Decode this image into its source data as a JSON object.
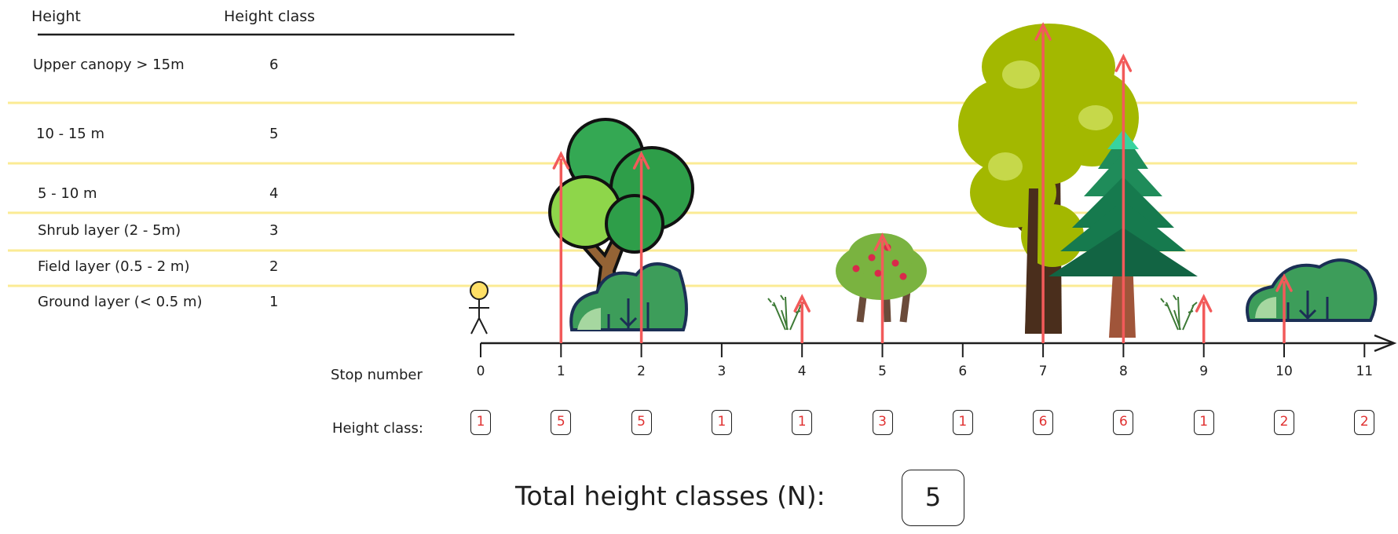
{
  "legend": {
    "col_height_label": "Height",
    "col_class_label": "Height class",
    "rows": [
      {
        "label": "Upper canopy > 15m",
        "cls": "6"
      },
      {
        "label": "10 - 15 m",
        "cls": "5"
      },
      {
        "label": "5 - 10 m",
        "cls": "4"
      },
      {
        "label": "Shrub layer (2 - 5m)",
        "cls": "3"
      },
      {
        "label": "Field layer (0.5 - 2 m)",
        "cls": "2"
      },
      {
        "label": "Ground layer (< 0.5 m)",
        "cls": "1"
      }
    ]
  },
  "row_labels": {
    "stop_number": "Stop number",
    "height_class": "Height class:"
  },
  "stops": [
    {
      "number": "0",
      "height_class": "1",
      "object": "person-icon"
    },
    {
      "number": "1",
      "height_class": "5",
      "object": "deciduous-tree-icon"
    },
    {
      "number": "2",
      "height_class": "5",
      "object": "bush-icon"
    },
    {
      "number": "3",
      "height_class": "1",
      "object": ""
    },
    {
      "number": "4",
      "height_class": "1",
      "object": "herb-icon"
    },
    {
      "number": "5",
      "height_class": "3",
      "object": "berry-shrub-icon"
    },
    {
      "number": "6",
      "height_class": "1",
      "object": ""
    },
    {
      "number": "7",
      "height_class": "6",
      "object": "tall-tree-icon"
    },
    {
      "number": "8",
      "height_class": "6",
      "object": "conifer-tree-icon"
    },
    {
      "number": "9",
      "height_class": "1",
      "object": "herb-icon"
    },
    {
      "number": "10",
      "height_class": "2",
      "object": "bush-icon"
    },
    {
      "number": "11",
      "height_class": "2",
      "object": ""
    }
  ],
  "total": {
    "label": "Total height classes (N):",
    "value": "5"
  },
  "colors": {
    "arrow": "#f25a5a",
    "band_line": "#fbeb94",
    "stroke": "#1e1e1e",
    "class_value": "#e03131"
  }
}
